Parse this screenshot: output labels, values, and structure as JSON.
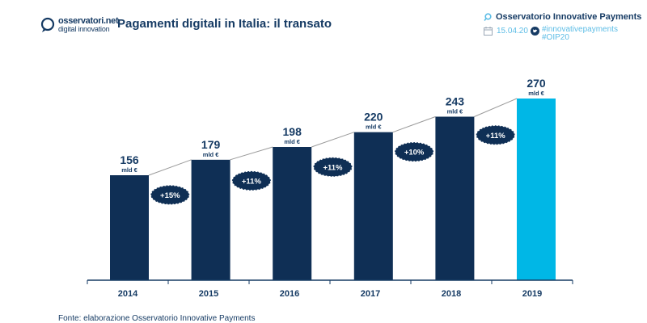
{
  "header": {
    "logo_line1": "osservatori.net",
    "logo_line2": "digital innovation",
    "title": "Pagamenti digitali in Italia: il transato",
    "observatory": "Osservatorio Innovative Payments",
    "date": "15.04.20",
    "hashtag1": "#innovativepayments",
    "hashtag2": "#OIP20"
  },
  "chart_data": {
    "type": "bar",
    "categories": [
      "2014",
      "2015",
      "2016",
      "2017",
      "2018",
      "2019"
    ],
    "values": [
      156,
      179,
      198,
      220,
      243,
      270
    ],
    "unit": "mld €",
    "growth": [
      "+15%",
      "+11%",
      "+11%",
      "+10%",
      "+11%"
    ],
    "colors": {
      "bar": "#0f2f55",
      "highlight": "#00b7e6",
      "badge": "#0f2f55"
    }
  },
  "footer": {
    "source": "Fonte: elaborazione Osservatorio Innovative Payments"
  }
}
